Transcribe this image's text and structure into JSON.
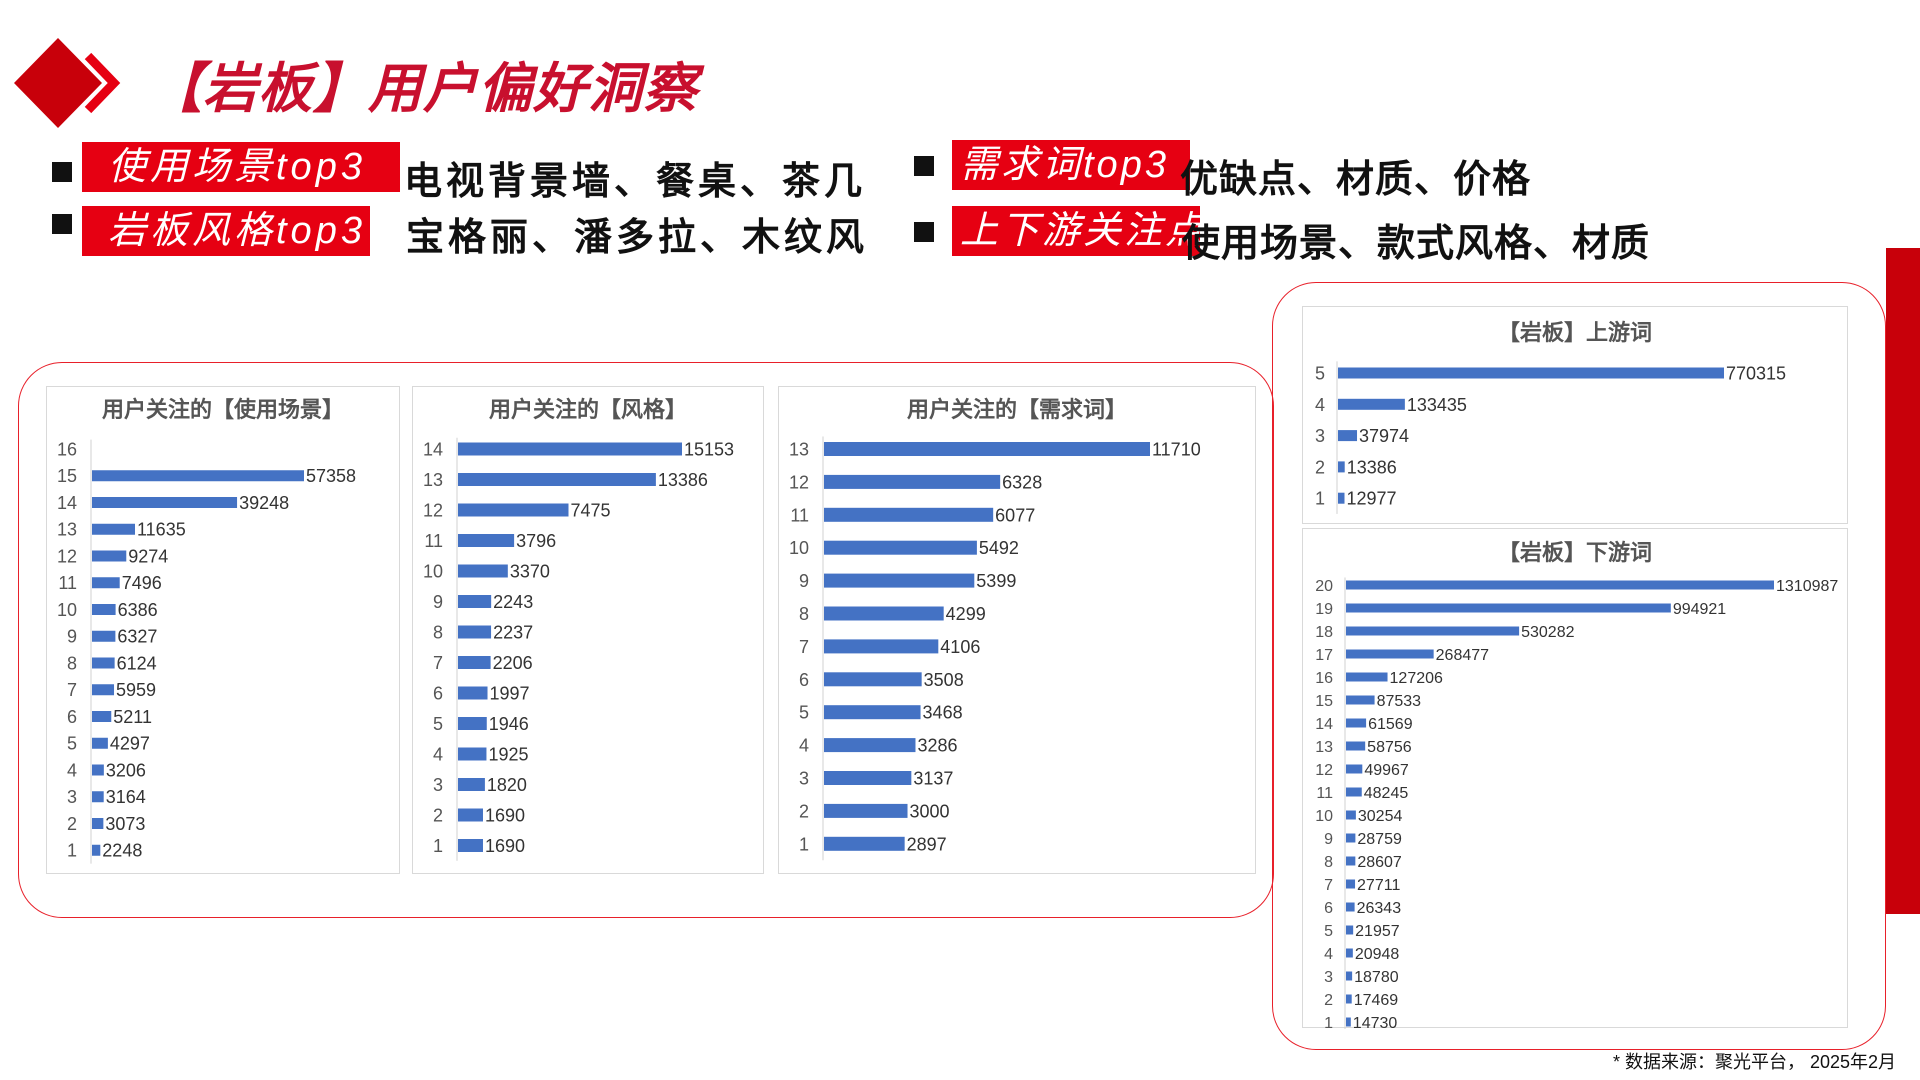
{
  "header": {
    "title": "【岩板】用户偏好洞察"
  },
  "summary": [
    {
      "tag": "使用场景top3",
      "text": "电视背景墙、餐桌、茶几"
    },
    {
      "tag": "岩板风格top3",
      "text": "宝格丽、潘多拉、木纹风"
    },
    {
      "tag": "需求词top3",
      "text": "优缺点、材质、价格"
    },
    {
      "tag": "上下游关注点",
      "text": "使用场景、款式风格、材质"
    }
  ],
  "footer": {
    "source": "* 数据来源：聚光平台， 2025年2月"
  },
  "colors": {
    "accent": "#e60012",
    "bar": "#4472c4"
  },
  "chart_data": [
    {
      "id": "usage",
      "type": "bar",
      "orientation": "horizontal",
      "title": "用户关注的【使用场景】",
      "categories": [
        "16",
        "15",
        "14",
        "13",
        "12",
        "11",
        "10",
        "9",
        "8",
        "7",
        "6",
        "5",
        "4",
        "3",
        "2",
        "1"
      ],
      "values": [
        null,
        57358,
        39248,
        11635,
        9274,
        7496,
        6386,
        6327,
        6124,
        5959,
        5211,
        4297,
        3206,
        3164,
        3073,
        2248
      ],
      "labels": [
        "",
        "57358",
        "39248",
        "11635",
        "9274",
        "7496",
        "6386",
        "6327",
        "6124",
        "5959",
        "5211",
        "4297",
        "3206",
        "3164",
        "3073",
        "2248"
      ]
    },
    {
      "id": "style",
      "type": "bar",
      "orientation": "horizontal",
      "title": "用户关注的【风格】",
      "categories": [
        "14",
        "13",
        "12",
        "11",
        "10",
        "9",
        "8",
        "7",
        "6",
        "5",
        "4",
        "3",
        "2",
        "1"
      ],
      "values": [
        15153,
        13386,
        7475,
        3796,
        3370,
        2243,
        2237,
        2206,
        1997,
        1946,
        1925,
        1820,
        1690,
        1690
      ],
      "labels": [
        "15153",
        "13386",
        "7475",
        "3796",
        "3370",
        "2243",
        "2237",
        "2206",
        "1997",
        "1946",
        "1925",
        "1820",
        "1690",
        "1690"
      ]
    },
    {
      "id": "demand",
      "type": "bar",
      "orientation": "horizontal",
      "title": "用户关注的【需求词】",
      "categories": [
        "13",
        "12",
        "11",
        "10",
        "9",
        "8",
        "7",
        "6",
        "5",
        "4",
        "3",
        "2",
        "1"
      ],
      "values": [
        11710,
        6328,
        6077,
        5492,
        5399,
        4299,
        4106,
        3508,
        3468,
        3286,
        3137,
        3000,
        2897
      ],
      "labels": [
        "11710",
        "6328",
        "6077",
        "5492",
        "5399",
        "4299",
        "4106",
        "3508",
        "3468",
        "3286",
        "3137",
        "3000",
        "2897"
      ]
    },
    {
      "id": "upstream",
      "type": "bar",
      "orientation": "horizontal",
      "title": "【岩板】上游词",
      "categories": [
        "5",
        "4",
        "3",
        "2",
        "1"
      ],
      "values": [
        770315,
        133435,
        37974,
        13386,
        12977
      ],
      "labels": [
        "770315",
        "133435",
        "37974",
        "13386",
        "12977"
      ]
    },
    {
      "id": "downstream",
      "type": "bar",
      "orientation": "horizontal",
      "title": "【岩板】下游词",
      "categories": [
        "20",
        "19",
        "18",
        "17",
        "16",
        "15",
        "14",
        "13",
        "12",
        "11",
        "10",
        "9",
        "8",
        "7",
        "6",
        "5",
        "4",
        "3",
        "2",
        "1"
      ],
      "values": [
        1310987,
        994921,
        530282,
        268477,
        127206,
        87533,
        61569,
        58756,
        49967,
        48245,
        30254,
        28759,
        28607,
        27711,
        26343,
        21957,
        20948,
        18780,
        17469,
        14730
      ],
      "labels": [
        "1310987",
        "994921",
        "530282",
        "268477",
        "127206",
        "87533",
        "61569",
        "58756",
        "49967",
        "48245",
        "30254",
        "28759",
        "28607",
        "27711",
        "26343",
        "21957",
        "20948",
        "18780",
        "17469",
        "14730"
      ]
    }
  ]
}
